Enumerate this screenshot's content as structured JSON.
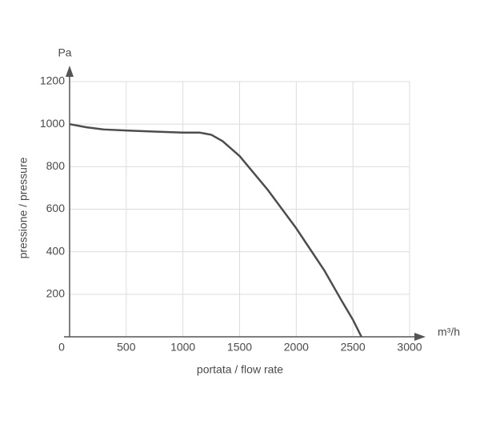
{
  "chart_data": {
    "type": "line",
    "x_label": "portata / flow rate",
    "y_label": "pressione / pressure",
    "x_unit": "m³/h",
    "y_unit": "Pa",
    "x": [
      0,
      150,
      300,
      500,
      750,
      1000,
      1150,
      1250,
      1350,
      1500,
      1750,
      2000,
      2250,
      2400,
      2500,
      2575
    ],
    "series": [
      {
        "color": "#4d4d4d",
        "values": [
          1000,
          985,
          975,
          970,
          965,
          960,
          960,
          950,
          920,
          850,
          690,
          510,
          310,
          170,
          80,
          0
        ]
      }
    ],
    "xlim": [
      0,
      3000
    ],
    "ylim": [
      0,
      1200
    ],
    "xticks": [
      0,
      500,
      1000,
      1500,
      2000,
      2500,
      3000
    ],
    "yticks": [
      200,
      400,
      600,
      800,
      1000,
      1200
    ],
    "grid": true
  }
}
